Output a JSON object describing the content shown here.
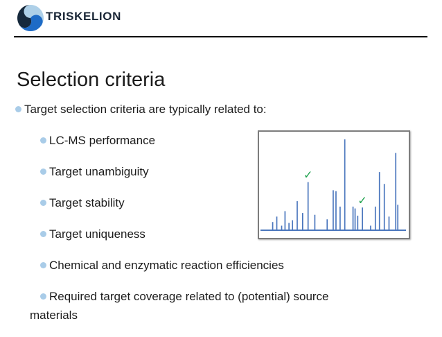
{
  "header": {
    "brand": "TRISKELION"
  },
  "title": "Selection criteria",
  "list": {
    "intro": "Target selection criteria are typically related to:",
    "items": [
      {
        "text": "LC-MS performance"
      },
      {
        "text": "Target unambiguity"
      },
      {
        "text": "Target stability"
      },
      {
        "text": "Target uniqueness"
      },
      {
        "text": "Chemical and enzymatic reaction efficiencies"
      },
      {
        "text": "Required target coverage related to (potential) source",
        "text2": "materials"
      }
    ]
  },
  "colors": {
    "bullet_blue": "#a9cce8",
    "brand_navy": "#1b2737",
    "logo_dark": "#16293c",
    "logo_blue": "#1e6bc6",
    "logo_light": "#aed0e8"
  },
  "chart_data": {
    "type": "bar",
    "title": "",
    "xlabel": "",
    "ylabel": "",
    "description": "Unlabeled LC-MS stick spectrum; x and intensity in percent of plot area; two peaks marked with green checkmarks",
    "grid": false,
    "legend": false,
    "line_color": "#4a76bd",
    "check_color": "#1ea24d",
    "check_glyph": "✓",
    "peaks": [
      {
        "x": 8.3,
        "v": 9
      },
      {
        "x": 11.1,
        "v": 15
      },
      {
        "x": 14.4,
        "v": 5
      },
      {
        "x": 16.7,
        "v": 21
      },
      {
        "x": 19.4,
        "v": 8
      },
      {
        "x": 21.8,
        "v": 11
      },
      {
        "x": 25.0,
        "v": 32
      },
      {
        "x": 28.7,
        "v": 19
      },
      {
        "x": 32.4,
        "v": 53
      },
      {
        "x": 37.0,
        "v": 17
      },
      {
        "x": 45.4,
        "v": 12
      },
      {
        "x": 49.5,
        "v": 44
      },
      {
        "x": 51.4,
        "v": 43
      },
      {
        "x": 54.2,
        "v": 26
      },
      {
        "x": 57.4,
        "v": 100
      },
      {
        "x": 63.0,
        "v": 26
      },
      {
        "x": 64.4,
        "v": 24
      },
      {
        "x": 66.2,
        "v": 16
      },
      {
        "x": 69.4,
        "v": 25
      },
      {
        "x": 75.0,
        "v": 5
      },
      {
        "x": 78.2,
        "v": 26
      },
      {
        "x": 81.0,
        "v": 64
      },
      {
        "x": 84.3,
        "v": 51
      },
      {
        "x": 87.5,
        "v": 15
      },
      {
        "x": 92.1,
        "v": 85
      },
      {
        "x": 93.5,
        "v": 28
      }
    ],
    "checkmarks": [
      {
        "x": 32.4,
        "v": 53
      },
      {
        "x": 69.4,
        "v": 25
      }
    ]
  }
}
